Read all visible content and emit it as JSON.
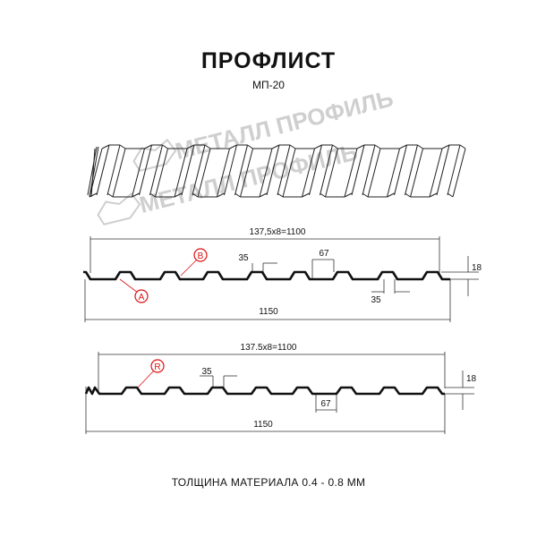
{
  "header": {
    "title": "ПРОФЛИСТ",
    "subtitle": "МП-20"
  },
  "watermark": {
    "text": "МЕТАЛЛ ПРОФИЛЬ"
  },
  "profile_a": {
    "pitch_label": "137,5x8=1100",
    "width_label": "1150",
    "top_width_label": "35",
    "rib_label": "67",
    "bottom_width_label": "35",
    "height_label": "18",
    "marker_a": "A",
    "marker_b": "B"
  },
  "profile_r": {
    "pitch_label": "137.5x8=1100",
    "width_label": "1150",
    "top_width_label": "35",
    "rib_label": "67",
    "height_label": "18",
    "marker_r": "R"
  },
  "footer": {
    "thickness": "ТОЛЩИНА МАТЕРИАЛА 0.4 - 0.8 ММ"
  },
  "colors": {
    "line": "#111111",
    "marker": "#dd1111",
    "watermark": "#cfcfcf"
  }
}
